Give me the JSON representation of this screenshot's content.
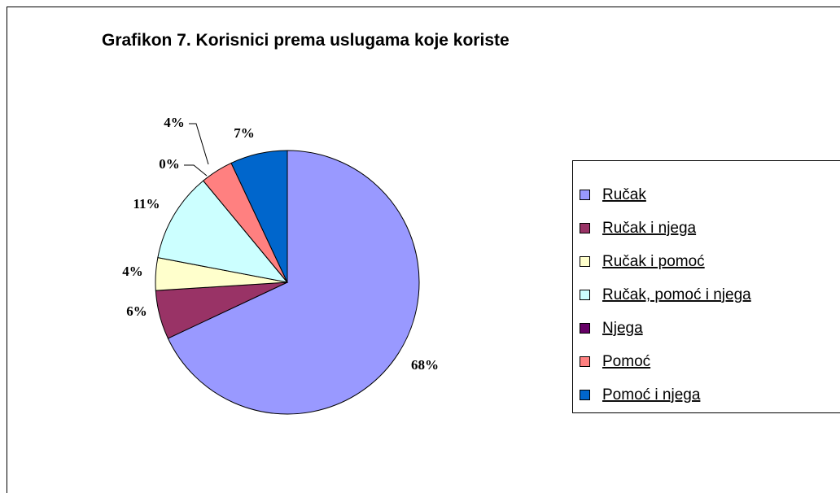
{
  "chart_data": {
    "type": "pie",
    "title": "Grafikon 7. Korisnici prema uslugama koje koriste",
    "categories": [
      "Ručak",
      "Ručak i njega",
      "Ručak i pomoć",
      "Ručak, pomoć i njega",
      "Njega",
      "Pomoć",
      "Pomoć i njega"
    ],
    "values": [
      68,
      6,
      4,
      11,
      0,
      4,
      7
    ],
    "value_labels": [
      "68%",
      "6%",
      "4%",
      "11%",
      "0%",
      "4%",
      "7%"
    ],
    "colors": [
      "#9999ff",
      "#993366",
      "#ffffcc",
      "#ccffff",
      "#660066",
      "#ff8080",
      "#0066cc"
    ],
    "legend": "right"
  }
}
